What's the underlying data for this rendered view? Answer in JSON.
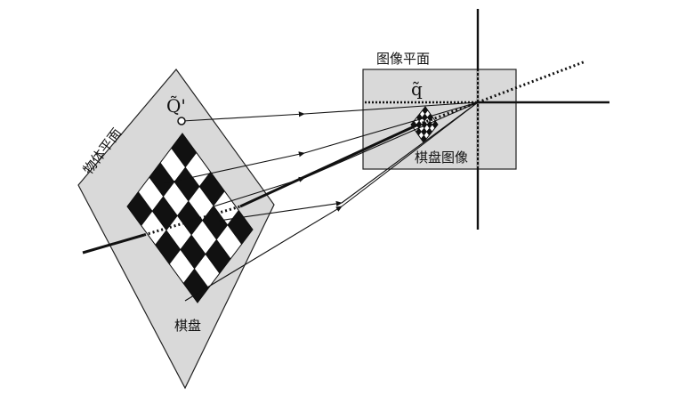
{
  "labels": {
    "object_plane": "物体平面",
    "image_plane": "图像平面",
    "chessboard": "棋盘",
    "chessboard_image": "棋盘图像",
    "point_Q": "Q̃'",
    "point_q": "q̃"
  },
  "colors": {
    "plane_fill": "#d9d9d9",
    "stroke": "#111111",
    "dark_square": "#111111",
    "light_square": "#ffffff"
  }
}
